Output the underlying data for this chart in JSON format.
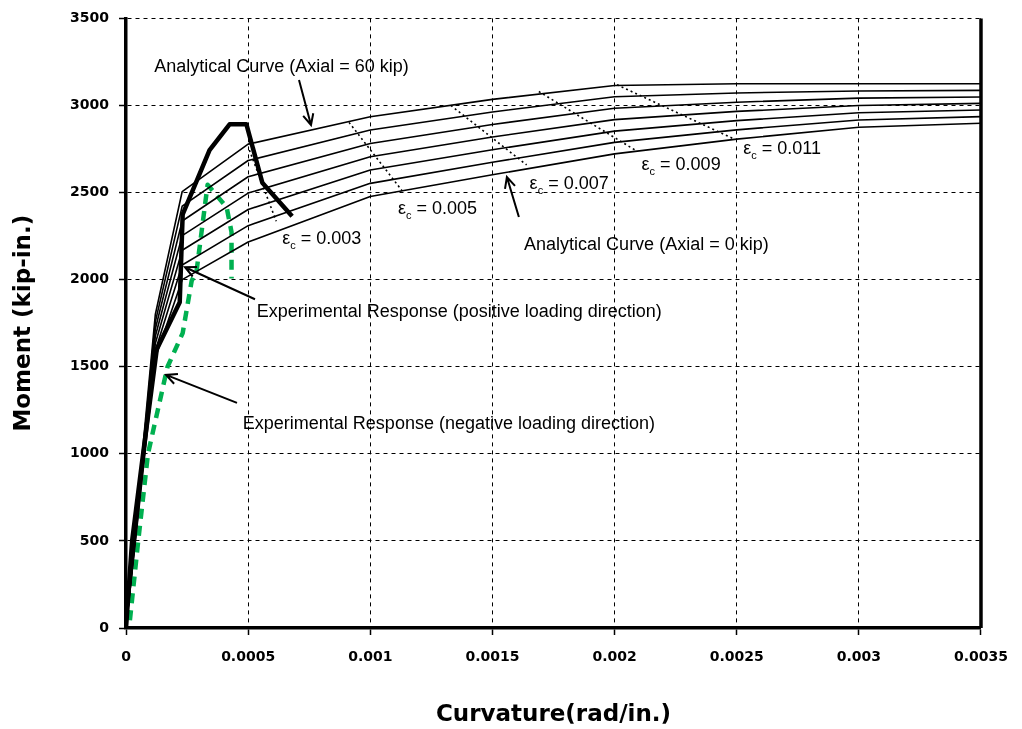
{
  "chart_data": {
    "type": "line",
    "xlabel": "Curvature(rad/in.)",
    "ylabel": "Moment (kip-in.)",
    "x": [
      0,
      0.00012,
      0.00023,
      0.0005,
      0.001,
      0.0015,
      0.002,
      0.0025,
      0.003,
      0.0035
    ],
    "series": [
      {
        "color": "#000000",
        "line_style": "solid",
        "values": [
          0,
          1800,
          2506,
          2778,
          2935,
          3035,
          3115,
          3125,
          3125,
          3125
        ]
      },
      {
        "color": "#000000",
        "line_style": "solid",
        "values": [
          0,
          1758,
          2422,
          2684,
          2859,
          2963,
          3050,
          3072,
          3083,
          3087
        ]
      },
      {
        "color": "#000000",
        "line_style": "solid",
        "values": [
          0,
          1717,
          2337,
          2591,
          2782,
          2891,
          2984,
          3019,
          3042,
          3049
        ]
      },
      {
        "color": "#000000",
        "line_style": "solid",
        "values": [
          0,
          1675,
          2253,
          2497,
          2706,
          2819,
          2919,
          2966,
          3000,
          3012
        ]
      },
      {
        "color": "#000000",
        "line_style": "solid",
        "values": [
          0,
          1633,
          2169,
          2403,
          2630,
          2746,
          2853,
          2913,
          2958,
          2974
        ]
      },
      {
        "color": "#000000",
        "line_style": "solid",
        "values": [
          0,
          1592,
          2084,
          2310,
          2553,
          2674,
          2788,
          2860,
          2917,
          2936
        ]
      },
      {
        "color": "#000000",
        "line_style": "solid",
        "values": [
          0,
          1550,
          2000,
          2216,
          2477,
          2602,
          2722,
          2807,
          2875,
          2898
        ]
      },
      {
        "color": "#000000",
        "line_style": "solid",
        "x": [
          0,
          2.5e-05,
          7e-05,
          0.000126,
          0.00022,
          0.000232,
          0.000342,
          0.000424,
          0.000493,
          0.000558,
          0.00068
        ],
        "values": [
          0,
          500,
          1000,
          1600,
          1870,
          2375,
          2744,
          2892,
          2892,
          2557,
          2364
        ]
      },
      {
        "color": "#00b050",
        "line_style": "dashed",
        "x": [
          1.6e-05,
          5e-05,
          9e-05,
          0.00017,
          0.000232,
          0.000269,
          0.000289,
          0.000334,
          0.000412,
          0.000432,
          0.000432
        ],
        "values": [
          45,
          500,
          1000,
          1500,
          1693,
          1994,
          2051,
          2545,
          2415,
          2273,
          2006
        ]
      },
      {
        "color": "#000000",
        "line_style": "dotted",
        "x": [
          0.000505,
          0.000615
        ],
        "values": [
          2744,
          2335
        ]
      },
      {
        "color": "#000000",
        "line_style": "dotted",
        "x": [
          0.000913,
          0.00113
        ],
        "values": [
          2903,
          2511
        ]
      },
      {
        "color": "#000000",
        "line_style": "dotted",
        "x": [
          0.00133,
          0.00164
        ],
        "values": [
          3000,
          2659
        ]
      },
      {
        "color": "#000000",
        "line_style": "dotted",
        "x": [
          0.00169,
          0.00209
        ],
        "values": [
          3080,
          2739
        ]
      },
      {
        "color": "#000000",
        "line_style": "dotted",
        "x": [
          0.00201,
          0.00249
        ],
        "values": [
          3119,
          2807
        ]
      }
    ],
    "xlim": [
      0,
      0.0035
    ],
    "xticks": [
      0,
      0.0005,
      0.001,
      0.0015,
      0.002,
      0.0025,
      0.003,
      0.0035
    ],
    "ylim": [
      0,
      3500
    ],
    "yticks": [
      0,
      500,
      1000,
      1500,
      2000,
      2500,
      3000,
      3500
    ],
    "grid": true,
    "legend": false,
    "marker": "none",
    "annotations": [
      {
        "text": "ε$_{c}$ = 0.003",
        "x": 0.000615,
        "y": 2335
      },
      {
        "text": "ε$_{c}$ = 0.005",
        "x": 0.00113,
        "y": 2511
      },
      {
        "text": "ε$_{c}$ = 0.007",
        "x": 0.00164,
        "y": 2659
      },
      {
        "text": "ε$_{c}$ = 0.009",
        "x": 0.00209,
        "y": 2739
      },
      {
        "text": "ε$_{c}$ = 0.011",
        "x": 0.00249,
        "y": 2807
      },
      {
        "text": "Analytical Curve (Axial = 60 kip)",
        "x": 0.000758,
        "y": 2886
      },
      {
        "text": "Analytical Curve (Axial = 0 kip)",
        "x": 0.00156,
        "y": 2591
      },
      {
        "text": "Experimental Response (positive loading direction)",
        "x": 0.00024,
        "y": 2074
      },
      {
        "text": "Experimental Response (negative loading direction)",
        "x": 0.000163,
        "y": 1455
      }
    ]
  }
}
